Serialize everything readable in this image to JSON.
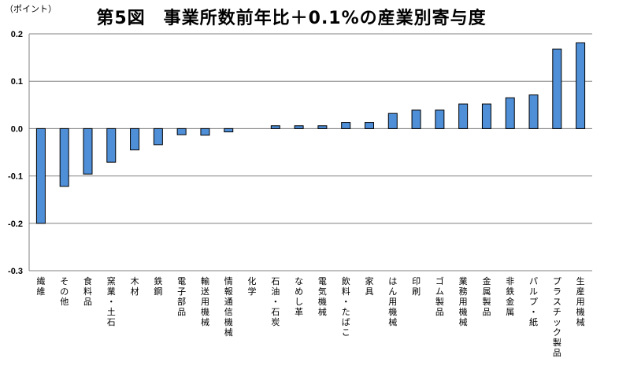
{
  "chart_data": {
    "type": "bar",
    "title": "第5図　事業所数前年比＋0.1%の産業別寄与度",
    "unit_label": "（ポイント）",
    "ylim": [
      -0.3,
      0.2
    ],
    "yticks": [
      "0.2",
      "0.1",
      "0.0",
      "-0.1",
      "-0.2",
      "-0.3"
    ],
    "grid": true,
    "bar_color": "#4f8fd8",
    "categories": [
      "繊維",
      "その他",
      "食料品",
      "窯業・土石",
      "木材",
      "鉄鋼",
      "電子部品",
      "輸送用機械",
      "情報通信機械",
      "化学",
      "石油・石炭",
      "なめし革",
      "電気機械",
      "飲料・たばこ",
      "家具",
      "はん用機械",
      "印刷",
      "ゴム製品",
      "業務用機械",
      "金属製品",
      "非鉄金属",
      "パルプ・紙",
      "プラスチック製品",
      "生産用機械"
    ],
    "values": [
      -0.2,
      -0.122,
      -0.096,
      -0.071,
      -0.045,
      -0.034,
      -0.013,
      -0.014,
      -0.007,
      0.0,
      0.006,
      0.006,
      0.006,
      0.013,
      0.013,
      0.032,
      0.039,
      0.039,
      0.052,
      0.052,
      0.065,
      0.071,
      0.168,
      0.181
    ]
  }
}
